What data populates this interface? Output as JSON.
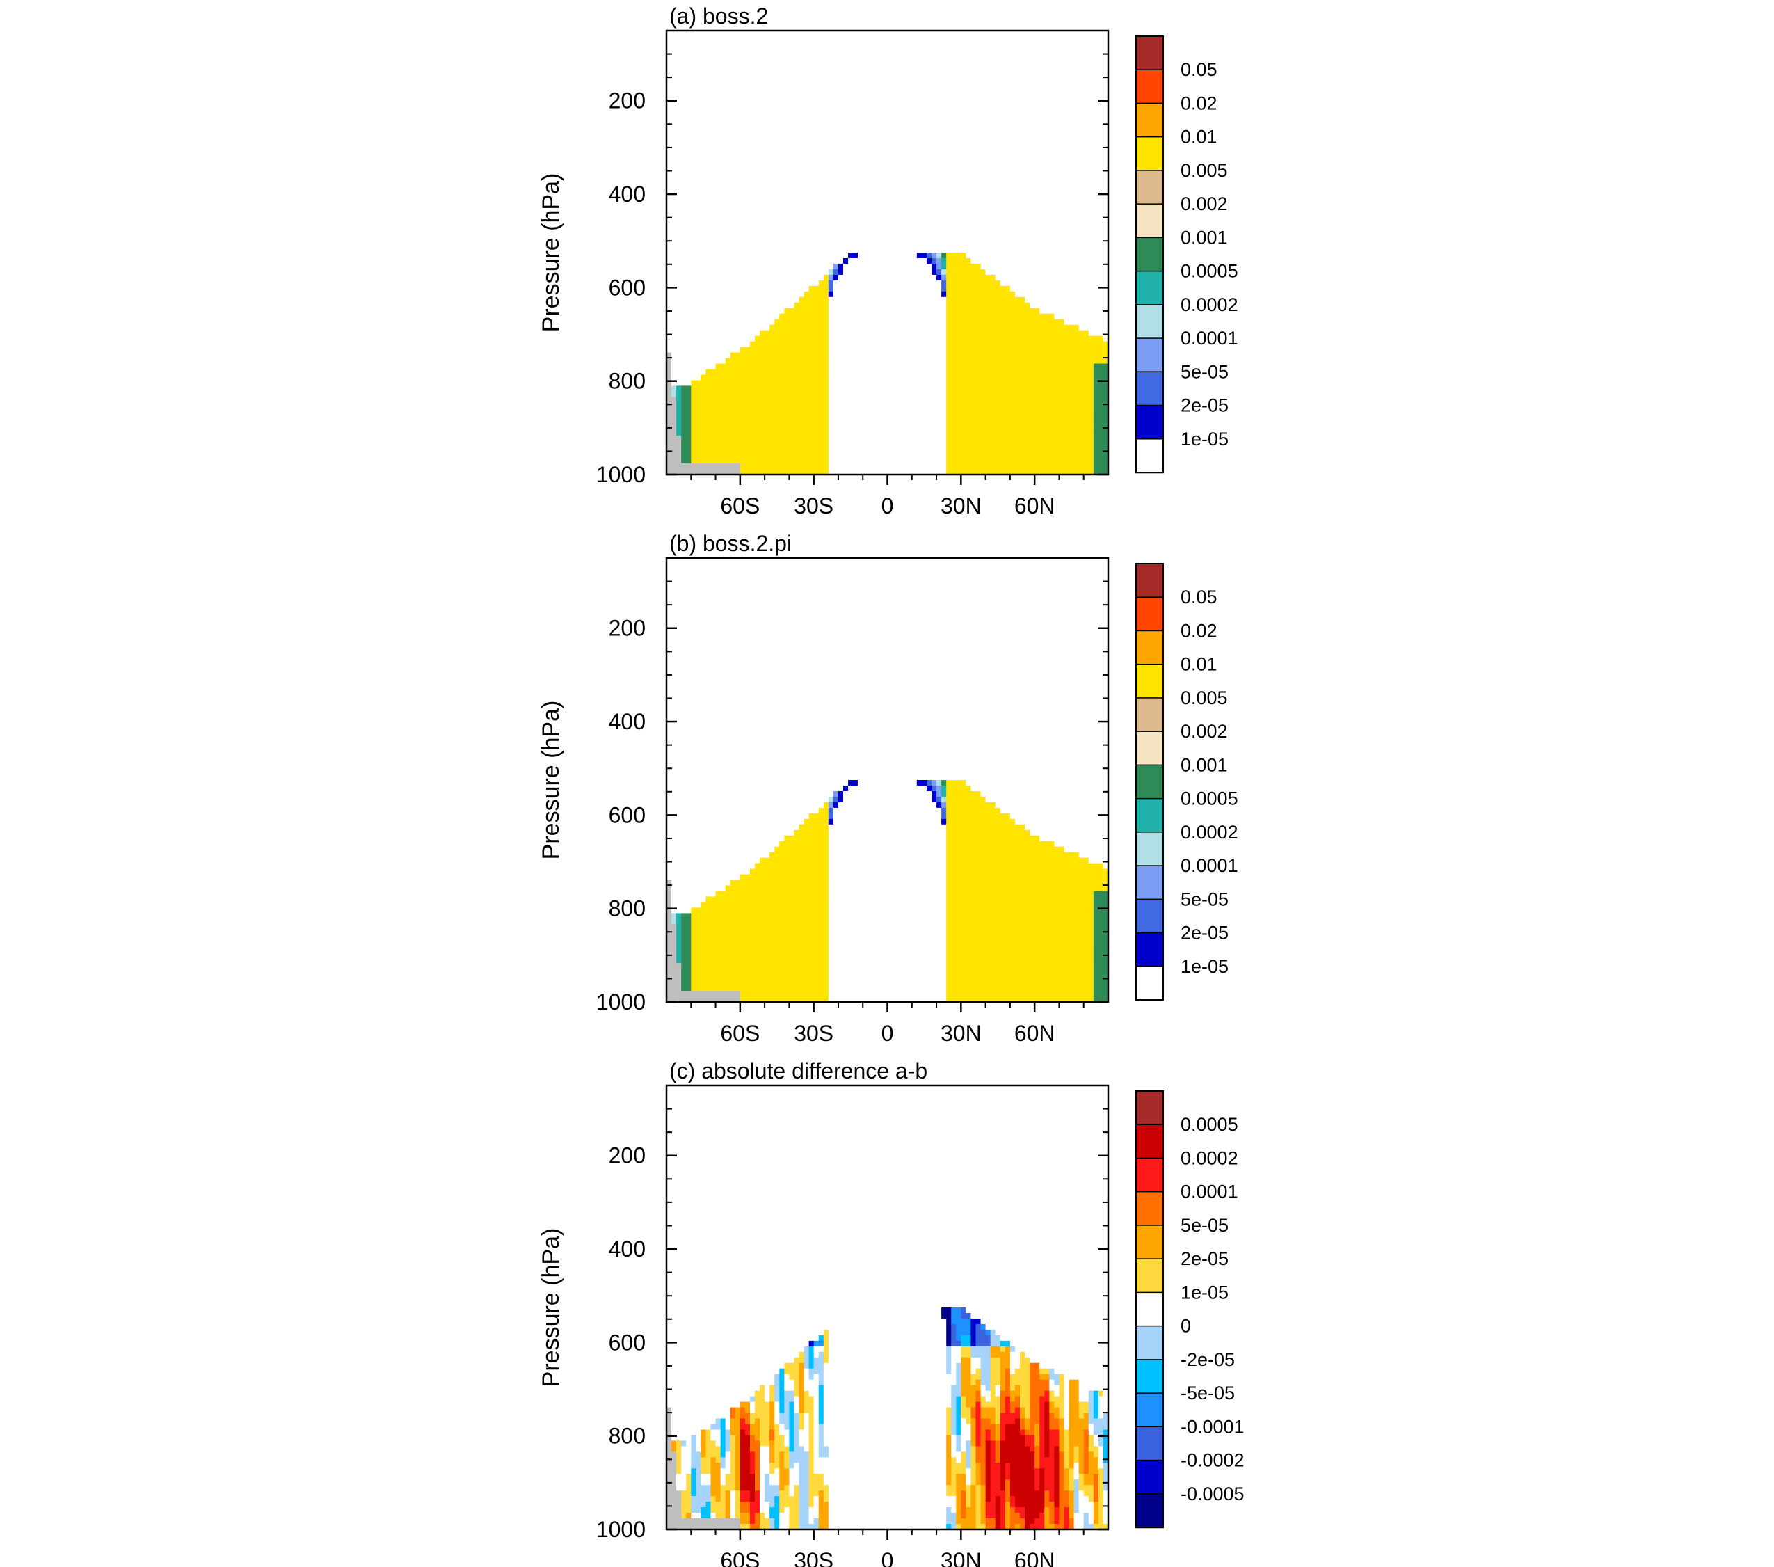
{
  "chart_data": [
    {
      "type": "heatmap",
      "title": "(a) boss.2",
      "ylabel": "Pressure (hPa)",
      "xlabel": "",
      "x_tick_labels": [
        "60S",
        "30S",
        "0",
        "30N",
        "60N"
      ],
      "x_tick_values": [
        -60,
        -30,
        0,
        30,
        60
      ],
      "xlim": [
        -90,
        90
      ],
      "y_tick_labels": [
        "200",
        "400",
        "600",
        "800",
        "1000"
      ],
      "y_tick_values": [
        200,
        400,
        600,
        800,
        1000
      ],
      "ylim": [
        1000,
        50
      ],
      "colorbar": {
        "levels": [
          "0.05",
          "0.02",
          "0.01",
          "0.005",
          "0.002",
          "0.001",
          "0.0005",
          "0.0002",
          "0.0001",
          "5e-05",
          "2e-05",
          "1e-05"
        ],
        "colors": [
          "#a52a2a",
          "#ff4500",
          "#ffa500",
          "#ffe400",
          "#dcb98a",
          "#f4e4c2",
          "#2e8b57",
          "#20b2aa",
          "#b0e0e6",
          "#7b9ef4",
          "#4169e1",
          "#0000cd",
          "#ffffff"
        ]
      },
      "missing_color": "#bebebe"
    },
    {
      "type": "heatmap",
      "title": "(b) boss.2.pi",
      "ylabel": "Pressure (hPa)",
      "xlabel": "",
      "x_tick_labels": [
        "60S",
        "30S",
        "0",
        "30N",
        "60N"
      ],
      "x_tick_values": [
        -60,
        -30,
        0,
        30,
        60
      ],
      "xlim": [
        -90,
        90
      ],
      "y_tick_labels": [
        "200",
        "400",
        "600",
        "800",
        "1000"
      ],
      "y_tick_values": [
        200,
        400,
        600,
        800,
        1000
      ],
      "ylim": [
        1000,
        50
      ],
      "colorbar": {
        "levels": [
          "0.05",
          "0.02",
          "0.01",
          "0.005",
          "0.002",
          "0.001",
          "0.0005",
          "0.0002",
          "0.0001",
          "5e-05",
          "2e-05",
          "1e-05"
        ],
        "colors": [
          "#a52a2a",
          "#ff4500",
          "#ffa500",
          "#ffe400",
          "#dcb98a",
          "#f4e4c2",
          "#2e8b57",
          "#20b2aa",
          "#b0e0e6",
          "#7b9ef4",
          "#4169e1",
          "#0000cd",
          "#ffffff"
        ]
      },
      "missing_color": "#bebebe"
    },
    {
      "type": "heatmap",
      "title": "(c) absolute difference a-b",
      "ylabel": "Pressure (hPa)",
      "xlabel": "",
      "x_tick_labels": [
        "60S",
        "30S",
        "0",
        "30N",
        "60N"
      ],
      "x_tick_values": [
        -60,
        -30,
        0,
        30,
        60
      ],
      "xlim": [
        -90,
        90
      ],
      "y_tick_labels": [
        "200",
        "400",
        "600",
        "800",
        "1000"
      ],
      "y_tick_values": [
        200,
        400,
        600,
        800,
        1000
      ],
      "ylim": [
        1000,
        50
      ],
      "colorbar": {
        "levels": [
          "0.0005",
          "0.0002",
          "0.0001",
          "5e-05",
          "2e-05",
          "1e-05",
          "0",
          "-2e-05",
          "-5e-05",
          "-0.0001",
          "-0.0002",
          "-0.0005"
        ],
        "colors": [
          "#a52a2a",
          "#cc0000",
          "#ff1a1a",
          "#ff7000",
          "#ffa500",
          "#ffd93d",
          "#ffffff",
          "#a6d3fa",
          "#00c0ff",
          "#1e90ff",
          "#3b63e0",
          "#0000cd",
          "#00008b"
        ]
      },
      "missing_color": "#bebebe"
    }
  ]
}
